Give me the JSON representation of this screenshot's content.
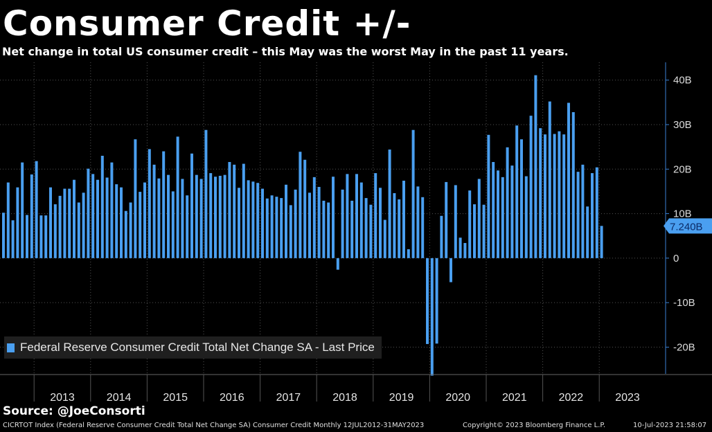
{
  "header": {
    "title": "Consumer Credit +/-",
    "subtitle": "Net change in total US consumer credit – this May was the worst May in the past 11 years."
  },
  "source_label": "Source: @JoeConsorti",
  "footer": {
    "left": "CICRTOT Index (Federal Reserve Consumer Credit Total Net Change SA) Consumer Credit  Monthly 12JUL2012-31MAY2023",
    "middle": "Copyright© 2023 Bloomberg Finance L.P.",
    "right": "10-Jul-2023 21:58:07"
  },
  "colors": {
    "bar": "#4a9ff0",
    "background": "#000000",
    "grid": "#555555",
    "axis": "#3b82d6"
  },
  "chart_data": {
    "type": "bar",
    "legend": "Federal Reserve Consumer Credit Total Net Change SA - Last Price",
    "legend_position": "bottom-left",
    "ylim": [
      -26,
      44
    ],
    "yticks": [
      -20,
      -10,
      0,
      10,
      20,
      30,
      40
    ],
    "ytick_labels": [
      "-20B",
      "-10B",
      "0",
      "10B",
      "20B",
      "30B",
      "40B"
    ],
    "y_unit": "B",
    "last_price_label": "7.240B",
    "grid": true,
    "x_start": "2012-06",
    "x_end": "2023-05",
    "x_labels": [
      "2013",
      "2014",
      "2015",
      "2016",
      "2017",
      "2018",
      "2019",
      "2020",
      "2021",
      "2022",
      "2023"
    ],
    "series": [
      {
        "values": [
          10.2,
          17.0,
          8.5,
          15.9,
          21.5,
          9.7,
          18.8,
          21.8,
          9.6,
          9.6,
          15.9,
          12.1,
          14.0,
          15.6,
          15.6,
          17.6,
          12.5,
          14.7,
          20.1,
          18.9,
          17.6,
          23.0,
          18.1,
          21.5,
          16.6,
          15.9,
          10.6,
          12.5,
          26.7,
          14.9,
          17.0,
          24.5,
          21.0,
          17.9,
          24.0,
          18.7,
          15.0,
          27.3,
          17.8,
          14.1,
          23.5,
          18.7,
          17.8,
          28.8,
          19.1,
          18.3,
          18.5,
          18.7,
          21.6,
          21.0,
          15.8,
          21.2,
          17.5,
          17.2,
          16.9,
          15.6,
          13.4,
          14.1,
          13.8,
          13.5,
          16.5,
          11.9,
          15.4,
          23.9,
          22.1,
          14.7,
          18.2,
          16.0,
          12.9,
          12.5,
          18.3,
          -2.6,
          15.4,
          18.9,
          12.9,
          18.9,
          17.0,
          13.5,
          12.0,
          19.1,
          15.8,
          8.6,
          24.4,
          14.6,
          13.2,
          17.4,
          2.0,
          28.8,
          16.1,
          13.7,
          -19.3,
          -26.4,
          -19.2,
          9.5,
          17.1,
          -5.4,
          16.4,
          4.6,
          3.4,
          15.2,
          12.1,
          17.8,
          12.0,
          27.7,
          21.6,
          19.7,
          18.2,
          24.9,
          20.8,
          29.8,
          26.7,
          18.4,
          32.0,
          41.1,
          29.2,
          27.8,
          35.2,
          27.9,
          28.5,
          27.8,
          34.9,
          32.8,
          19.4,
          21.0,
          11.6,
          19.1,
          20.4,
          7.24
        ]
      }
    ]
  }
}
